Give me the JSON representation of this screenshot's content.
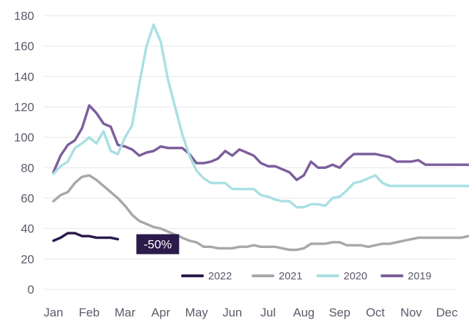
{
  "chart_data": {
    "type": "line",
    "title": "",
    "xlabel": "",
    "ylabel": "",
    "ylim": [
      0,
      180
    ],
    "yticks": [
      0,
      20,
      40,
      60,
      80,
      100,
      120,
      140,
      160,
      180
    ],
    "x_tick_labels": [
      "Jan",
      "Feb",
      "Mar",
      "Apr",
      "May",
      "Jun",
      "Jul",
      "Aug",
      "Sep",
      "Oct",
      "Nov",
      "Dec"
    ],
    "grid": true,
    "legend_position": "bottom-right",
    "annotation": {
      "text": "-50%",
      "series": "2022",
      "bg_color": "#2a1b4a"
    },
    "series": [
      {
        "name": "2019",
        "color": "#7b5e9b",
        "x": [
          0,
          0.2,
          0.4,
          0.6,
          0.8,
          1.0,
          1.2,
          1.4,
          1.6,
          1.8,
          2.0,
          2.2,
          2.4,
          2.6,
          2.8,
          3.0,
          3.2,
          3.4,
          3.6,
          3.8,
          4.0,
          4.2,
          4.4,
          4.6,
          4.8,
          5.0,
          5.2,
          5.4,
          5.6,
          5.8,
          6.0,
          6.2,
          6.4,
          6.6,
          6.8,
          7.0,
          7.2,
          7.4,
          7.6,
          7.8,
          8.0,
          8.2,
          8.4,
          8.6,
          8.8,
          9.0,
          9.2,
          9.4,
          9.6,
          9.8,
          10.0,
          10.2,
          10.4,
          10.6,
          10.8,
          11.0,
          11.2,
          11.4,
          11.6
        ],
        "values": [
          77,
          88,
          95,
          98,
          106,
          121,
          116,
          109,
          107,
          95,
          94,
          92,
          88,
          90,
          91,
          94,
          93,
          93,
          93,
          89,
          83,
          83,
          84,
          86,
          91,
          88,
          92,
          90,
          88,
          83,
          81,
          81,
          79,
          77,
          72,
          75,
          84,
          80,
          80,
          82,
          80,
          85,
          89,
          89,
          89,
          89,
          88,
          87,
          84,
          84,
          84,
          85,
          82,
          82,
          82,
          82,
          82,
          82,
          82
        ]
      },
      {
        "name": "2020",
        "color": "#a9e0e2",
        "x": [
          0,
          0.2,
          0.4,
          0.6,
          0.8,
          1.0,
          1.2,
          1.4,
          1.6,
          1.8,
          2.0,
          2.2,
          2.4,
          2.6,
          2.8,
          3.0,
          3.2,
          3.4,
          3.6,
          3.8,
          4.0,
          4.2,
          4.4,
          4.6,
          4.8,
          5.0,
          5.2,
          5.4,
          5.6,
          5.8,
          6.0,
          6.2,
          6.4,
          6.6,
          6.8,
          7.0,
          7.2,
          7.4,
          7.6,
          7.8,
          8.0,
          8.2,
          8.4,
          8.6,
          8.8,
          9.0,
          9.2,
          9.4,
          9.6,
          9.8,
          10.0,
          10.2,
          10.4,
          10.6,
          10.8,
          11.0,
          11.2,
          11.4,
          11.6
        ],
        "values": [
          76,
          81,
          84,
          93,
          96,
          100,
          96,
          104,
          91,
          89,
          100,
          108,
          135,
          160,
          174,
          163,
          138,
          120,
          102,
          88,
          78,
          73,
          70,
          70,
          70,
          66,
          66,
          66,
          66,
          62,
          61,
          59,
          58,
          58,
          54,
          54,
          56,
          56,
          55,
          60,
          61,
          65,
          70,
          71,
          73,
          75,
          70,
          68,
          68,
          68,
          68,
          68,
          68,
          68,
          68,
          68,
          68,
          68,
          68
        ]
      },
      {
        "name": "2021",
        "color": "#a8a8a8",
        "x": [
          0,
          0.2,
          0.4,
          0.6,
          0.8,
          1.0,
          1.2,
          1.4,
          1.6,
          1.8,
          2.0,
          2.2,
          2.4,
          2.6,
          2.8,
          3.0,
          3.2,
          3.4,
          3.6,
          3.8,
          4.0,
          4.2,
          4.4,
          4.6,
          4.8,
          5.0,
          5.2,
          5.4,
          5.6,
          5.8,
          6.0,
          6.2,
          6.4,
          6.6,
          6.8,
          7.0,
          7.2,
          7.4,
          7.6,
          7.8,
          8.0,
          8.2,
          8.4,
          8.6,
          8.8,
          9.0,
          9.2,
          9.4,
          9.6,
          9.8,
          10.0,
          10.2,
          10.4,
          10.6,
          10.8,
          11.0,
          11.2,
          11.4,
          11.6
        ],
        "values": [
          58,
          62,
          64,
          70,
          74,
          75,
          72,
          68,
          64,
          60,
          55,
          49,
          45,
          43,
          41,
          40,
          38,
          36,
          34,
          32,
          31,
          28,
          28,
          27,
          27,
          27,
          28,
          28,
          29,
          28,
          28,
          28,
          27,
          26,
          26,
          27,
          30,
          30,
          30,
          31,
          31,
          29,
          29,
          29,
          28,
          29,
          30,
          30,
          31,
          32,
          33,
          34,
          34,
          34,
          34,
          34,
          34,
          34,
          35
        ]
      },
      {
        "name": "2022",
        "color": "#2a1b4a",
        "x": [
          0,
          0.2,
          0.4,
          0.6,
          0.8,
          1.0,
          1.2,
          1.4,
          1.6,
          1.8
        ],
        "values": [
          32,
          34,
          37,
          37,
          35,
          35,
          34,
          34,
          34,
          33
        ]
      }
    ]
  }
}
